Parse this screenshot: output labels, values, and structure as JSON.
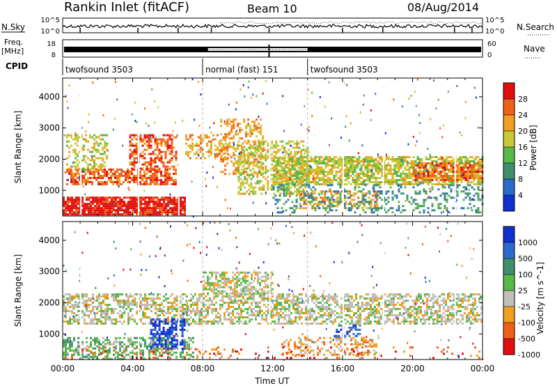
{
  "header": {
    "station": "Rankin Inlet (fitACF)",
    "beam": "Beam 10",
    "date": "08/Aug/2014"
  },
  "strips": {
    "nsky": {
      "label": "N.Sky",
      "tick_top": "10^5",
      "tick_bottom": "10^0"
    },
    "nsearch": {
      "label": "N.Search",
      "tick_top": "10^5",
      "tick_bottom": "10^0"
    },
    "freq": {
      "label_line1": "Freq.",
      "label_line2": "[MHz]",
      "tick_top": "18",
      "tick_bottom": "8"
    },
    "nave": {
      "label": "Nave",
      "tick_top": "60",
      "tick_bottom": "0"
    },
    "cpid": {
      "label": "CPID",
      "segments": [
        {
          "name": "twofsound 3503",
          "start_hour": 0,
          "end_hour": 8
        },
        {
          "name": "normal (fast) 151",
          "start_hour": 8,
          "end_hour": 14
        },
        {
          "name": "twofsound 3503",
          "start_hour": 14,
          "end_hour": 24
        }
      ]
    }
  },
  "chart_data": [
    {
      "type": "heatmap",
      "name": "power",
      "ylabel": "Slant Range [km]",
      "ylim": [
        180,
        4600
      ],
      "yticks": [
        "1000",
        "2000",
        "3000",
        "4000"
      ],
      "ytick_values": [
        1000,
        2000,
        3000,
        4000
      ],
      "xlim": [
        0,
        24
      ],
      "colorbar_label": "Power [dB]",
      "colorbar_ticks": [
        "4",
        "8",
        "12",
        "16",
        "20",
        "24",
        "28"
      ],
      "colors": [
        "#1030d0",
        "#2c6cc8",
        "#3f8f6e",
        "#58b848",
        "#c8c83a",
        "#f0a020",
        "#f06018",
        "#e01010"
      ],
      "regions": [
        {
          "t0": 0.0,
          "t1": 7.0,
          "r0": 200,
          "r1": 800,
          "level": 7,
          "density": 0.9
        },
        {
          "t0": 0.2,
          "t1": 6.5,
          "r0": 1200,
          "r1": 1700,
          "level": 6,
          "density": 0.7
        },
        {
          "t0": 3.8,
          "t1": 6.5,
          "r0": 1700,
          "r1": 2800,
          "level": 6,
          "density": 0.55
        },
        {
          "t0": 0.2,
          "t1": 2.5,
          "r0": 1700,
          "r1": 2800,
          "level": 4,
          "density": 0.4
        },
        {
          "t0": 7.0,
          "t1": 9.5,
          "r0": 2000,
          "r1": 2800,
          "level": 5,
          "density": 0.45
        },
        {
          "t0": 9.0,
          "t1": 11.5,
          "r0": 1500,
          "r1": 3300,
          "level": 5,
          "density": 0.35
        },
        {
          "t0": 10.0,
          "t1": 14.0,
          "r0": 900,
          "r1": 2600,
          "level": 4,
          "density": 0.5
        },
        {
          "t0": 12.0,
          "t1": 24.0,
          "r0": 1200,
          "r1": 2100,
          "level": 4,
          "density": 0.7
        },
        {
          "t0": 20.0,
          "t1": 24.0,
          "r0": 1300,
          "r1": 1900,
          "level": 6,
          "density": 0.6
        },
        {
          "t0": 13.5,
          "t1": 18.0,
          "r0": 400,
          "r1": 1000,
          "level": 5,
          "density": 0.5
        },
        {
          "t0": 12.0,
          "t1": 24.0,
          "r0": 300,
          "r1": 1200,
          "level": 2,
          "density": 0.25
        }
      ]
    },
    {
      "type": "heatmap",
      "name": "velocity",
      "ylabel": "Slant Range [km]",
      "ylim": [
        180,
        4600
      ],
      "yticks": [
        "1000",
        "2000",
        "3000",
        "4000"
      ],
      "ytick_values": [
        1000,
        2000,
        3000,
        4000
      ],
      "xlim": [
        0,
        24
      ],
      "xlabel": "Time UT",
      "xticks": [
        "00:00",
        "04:00",
        "08:00",
        "12:00",
        "16:00",
        "20:00",
        "00:00"
      ],
      "xtick_values": [
        0,
        4,
        8,
        12,
        16,
        20,
        24
      ],
      "colorbar_label": "Velocity [m s^-1]",
      "colorbar_ticks": [
        "1000",
        "500",
        "100",
        "25",
        "-25",
        "-100",
        "-500",
        "-1000"
      ],
      "colors": [
        "#1030d0",
        "#2c6cc8",
        "#3f8f6e",
        "#58b848",
        "#c0c0b8",
        "#f0a020",
        "#f06018",
        "#e01010"
      ],
      "regions": [
        {
          "t0": 0.0,
          "t1": 24.0,
          "r0": 1300,
          "r1": 2300,
          "level": 4,
          "density": 0.55
        },
        {
          "t0": 8.0,
          "t1": 12.0,
          "r0": 2300,
          "r1": 3000,
          "level": 4,
          "density": 0.6
        },
        {
          "t0": 0.0,
          "t1": 7.5,
          "r0": 200,
          "r1": 900,
          "level": 3,
          "density": 0.5
        },
        {
          "t0": 5.0,
          "t1": 7.0,
          "r0": 500,
          "r1": 1500,
          "level": 0,
          "density": 0.6
        },
        {
          "t0": 12.5,
          "t1": 18.0,
          "r0": 300,
          "r1": 900,
          "level": 5,
          "density": 0.35
        },
        {
          "t0": 15.5,
          "t1": 17.0,
          "r0": 900,
          "r1": 1300,
          "level": 1,
          "density": 0.4
        },
        {
          "t0": 0.0,
          "t1": 24.0,
          "r0": 200,
          "r1": 600,
          "level": 6,
          "density": 0.1
        }
      ]
    }
  ]
}
